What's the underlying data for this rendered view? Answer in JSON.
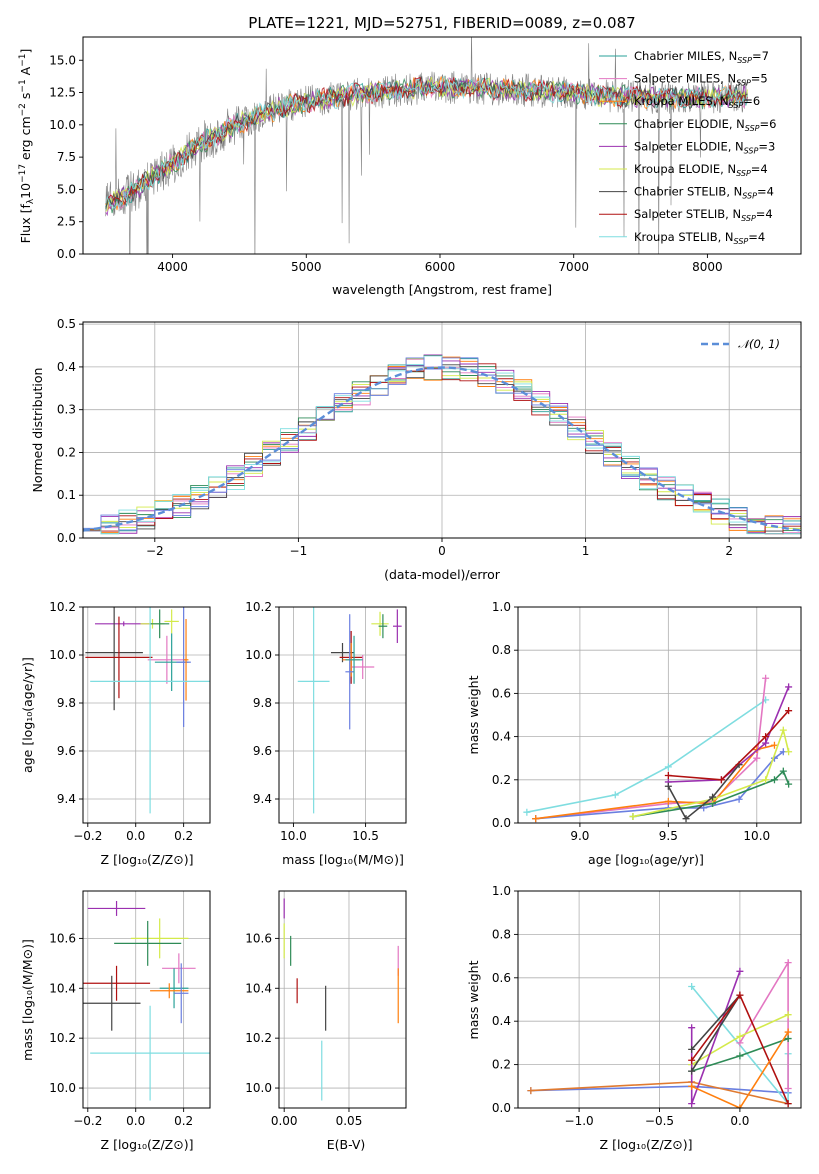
{
  "colors": {
    "Chabrier MILES": "#2aa198",
    "Salpeter MILES": "#e377c2",
    "Kroupa MILES": "#ff7f0e",
    "Chabrier ELODIE": "#2e8b57",
    "Salpeter ELODIE": "#9b30b0",
    "Kroupa ELODIE": "#d4ea4b",
    "Chabrier STELIB": "#444444",
    "Salpeter STELIB": "#b01010",
    "Kroupa STELIB": "#7fdde0",
    "data": "#808080",
    "gauss": "#5b8ed8",
    "extra1": "#6a7fe0",
    "extra2": "#e07a30"
  },
  "chart_data": [
    {
      "id": "spectrum",
      "type": "line",
      "title": "PLATE=1221, MJD=52751, FIBERID=0089, z=0.087",
      "xlabel": "wavelength [Angstrom, rest frame]",
      "ylabel": "Flux [fλ10⁻¹⁷ erg cm⁻² s⁻¹ A⁻¹]",
      "xlim": [
        3330,
        8700
      ],
      "ylim": [
        0,
        16.8
      ],
      "xticks": [
        "4000",
        "5000",
        "6000",
        "7000",
        "8000"
      ],
      "yticks": [
        "0.0",
        "2.5",
        "5.0",
        "7.5",
        "10.0",
        "12.5",
        "15.0"
      ],
      "grid": false,
      "legend_position": "right",
      "continuum": {
        "x": [
          3500,
          3700,
          3850,
          4000,
          4200,
          4400,
          4600,
          4800,
          5000,
          5200,
          5400,
          5600,
          5800,
          6000,
          6200,
          6400,
          6600,
          6800,
          7000,
          7200,
          7400,
          7600,
          7800,
          8000,
          8200,
          8300
        ],
        "y": [
          3.8,
          4.8,
          6.0,
          7.0,
          8.5,
          9.6,
          10.6,
          11.3,
          11.8,
          12.1,
          12.4,
          12.6,
          12.8,
          12.9,
          12.9,
          12.8,
          12.7,
          12.6,
          12.5,
          12.3,
          12.2,
          12.1,
          12.1,
          12.1,
          12.2,
          12.2
        ]
      },
      "legend": [
        {
          "name": "Chabrier MILES",
          "nssp": "7"
        },
        {
          "name": "Salpeter MILES",
          "nssp": "5"
        },
        {
          "name": "Kroupa MILES",
          "nssp": "6"
        },
        {
          "name": "Chabrier ELODIE",
          "nssp": "6"
        },
        {
          "name": "Salpeter ELODIE",
          "nssp": "3"
        },
        {
          "name": "Kroupa ELODIE",
          "nssp": "4"
        },
        {
          "name": "Chabrier STELIB",
          "nssp": "4"
        },
        {
          "name": "Salpeter STELIB",
          "nssp": "4"
        },
        {
          "name": "Kroupa STELIB",
          "nssp": "4"
        }
      ],
      "legend_prefix": "N",
      "legend_sub": "SSP"
    },
    {
      "id": "residuals",
      "type": "line",
      "xlabel": "(data-model)/error",
      "ylabel": "Normed distribution",
      "xlim": [
        -2.5,
        2.5
      ],
      "ylim": [
        0,
        0.505
      ],
      "xticks": [
        "−2",
        "−1",
        "0",
        "1",
        "2"
      ],
      "yticks": [
        "0.0",
        "0.1",
        "0.2",
        "0.3",
        "0.4",
        "0.5"
      ],
      "grid": true,
      "legend": [
        "𝒩(0, 1)"
      ],
      "legend_position": "top-right",
      "series": [
        {
          "name": "𝒩(0, 1)",
          "function": "normal",
          "mean": 0,
          "sigma": 1
        }
      ]
    },
    {
      "id": "age_vs_Z",
      "type": "scatter",
      "xlabel": "Z [log₁₀(Z/Z⊙)]",
      "ylabel": "age  [log₁₀(age/yr)]",
      "xlim": [
        -0.22,
        0.31
      ],
      "ylim": [
        9.3,
        10.2
      ],
      "xticks": [
        "−0.2",
        "0.0",
        "0.2"
      ],
      "yticks": [
        "9.4",
        "9.6",
        "9.8",
        "10.0",
        "10.2"
      ],
      "grid": true,
      "points": [
        {
          "x": -0.05,
          "y": 10.13,
          "ex": 0.12,
          "ey": 0.01,
          "c": "Salpeter ELODIE"
        },
        {
          "x": 0.07,
          "y": 10.13,
          "ex": 0.05,
          "ey": 0.02,
          "c": "Kroupa ELODIE"
        },
        {
          "x": 0.1,
          "y": 10.13,
          "ex": 0.04,
          "ey": 0.06,
          "c": "Chabrier ELODIE"
        },
        {
          "x": 0.15,
          "y": 10.14,
          "ex": 0.03,
          "ey": 0.05,
          "c": "Kroupa ELODIE"
        },
        {
          "x": -0.09,
          "y": 10.01,
          "ex": 0.12,
          "ey": 0.24,
          "c": "Chabrier STELIB"
        },
        {
          "x": -0.07,
          "y": 9.99,
          "ex": 0.14,
          "ey": 0.17,
          "c": "Salpeter STELIB"
        },
        {
          "x": 0.13,
          "y": 9.98,
          "ex": 0.08,
          "ey": 0.1,
          "c": "Salpeter MILES"
        },
        {
          "x": 0.15,
          "y": 9.97,
          "ex": 0.07,
          "ey": 0.12,
          "c": "Chabrier MILES"
        },
        {
          "x": 0.2,
          "y": 9.97,
          "ex": 0.03,
          "ey": 0.27,
          "c": "extra1"
        },
        {
          "x": 0.21,
          "y": 9.98,
          "ex": 0.01,
          "ey": 0.17,
          "c": "Kroupa MILES"
        },
        {
          "x": 0.06,
          "y": 9.89,
          "ex": 0.25,
          "ey": 0.55,
          "c": "Kroupa STELIB"
        }
      ]
    },
    {
      "id": "age_vs_mass",
      "type": "scatter",
      "xlabel": "mass [log₁₀(M/M⊙)]",
      "ylabel": "",
      "xlim": [
        9.9,
        10.78
      ],
      "ylim": [
        9.3,
        10.2
      ],
      "xticks": [
        "10.0",
        "10.5"
      ],
      "yticks": [
        "9.4",
        "9.6",
        "9.8",
        "10.0",
        "10.2"
      ],
      "grid": true,
      "points": [
        {
          "x": 10.72,
          "y": 10.12,
          "ex": 0.03,
          "ey": 0.07,
          "c": "Salpeter ELODIE"
        },
        {
          "x": 10.6,
          "y": 10.13,
          "ex": 0.06,
          "ey": 0.05,
          "c": "Kroupa ELODIE"
        },
        {
          "x": 10.62,
          "y": 10.12,
          "ex": 0.03,
          "ey": 0.05,
          "c": "Chabrier ELODIE"
        },
        {
          "x": 10.34,
          "y": 10.01,
          "ex": 0.08,
          "ey": 0.04,
          "c": "Chabrier STELIB"
        },
        {
          "x": 10.4,
          "y": 9.99,
          "ex": 0.08,
          "ey": 0.11,
          "c": "Salpeter STELIB"
        },
        {
          "x": 10.48,
          "y": 9.95,
          "ex": 0.08,
          "ey": 0.05,
          "c": "Salpeter MILES"
        },
        {
          "x": 10.4,
          "y": 9.98,
          "ex": 0.06,
          "ey": 0.07,
          "c": "Kroupa MILES"
        },
        {
          "x": 10.39,
          "y": 9.93,
          "ex": 0.03,
          "ey": 0.24,
          "c": "extra1"
        },
        {
          "x": 10.42,
          "y": 9.98,
          "ex": 0.06,
          "ey": 0.1,
          "c": "Chabrier MILES"
        },
        {
          "x": 10.14,
          "y": 9.89,
          "ex": 0.11,
          "ey": 0.55,
          "c": "Kroupa STELIB"
        }
      ]
    },
    {
      "id": "weight_vs_age",
      "type": "line",
      "xlabel": "age  [log₁₀(age/yr)]",
      "ylabel": "mass weight",
      "xlim": [
        8.65,
        10.25
      ],
      "ylim": [
        0,
        1
      ],
      "xticks": [
        "9.0",
        "9.5",
        "10.0"
      ],
      "yticks": [
        "0.0",
        "0.2",
        "0.4",
        "0.6",
        "0.8",
        "1.0"
      ],
      "grid": true,
      "series": [
        {
          "c": "Kroupa STELIB",
          "x": [
            8.7,
            9.2,
            9.5,
            10.05
          ],
          "y": [
            0.05,
            0.13,
            0.26,
            0.57
          ]
        },
        {
          "c": "Salpeter MILES",
          "x": [
            8.75,
            9.5,
            9.75,
            10.0,
            10.05
          ],
          "y": [
            0.02,
            0.09,
            0.1,
            0.3,
            0.67
          ]
        },
        {
          "c": "extra1",
          "x": [
            8.75,
            9.5,
            9.7,
            9.9,
            10.1,
            10.15
          ],
          "y": [
            0.02,
            0.07,
            0.07,
            0.11,
            0.3,
            0.33
          ]
        },
        {
          "c": "Kroupa MILES",
          "x": [
            8.75,
            9.5,
            9.75,
            10.0,
            10.1
          ],
          "y": [
            0.02,
            0.1,
            0.09,
            0.34,
            0.36
          ]
        },
        {
          "c": "Chabrier ELODIE",
          "x": [
            9.3,
            9.75,
            10.1,
            10.15,
            10.18
          ],
          "y": [
            0.03,
            0.09,
            0.2,
            0.24,
            0.18
          ]
        },
        {
          "c": "Kroupa ELODIE",
          "x": [
            9.3,
            9.75,
            10.05,
            10.15,
            10.18
          ],
          "y": [
            0.03,
            0.11,
            0.2,
            0.43,
            0.33
          ]
        },
        {
          "c": "Salpeter ELODIE",
          "x": [
            9.5,
            9.8,
            10.05,
            10.18
          ],
          "y": [
            0.19,
            0.2,
            0.37,
            0.63
          ]
        },
        {
          "c": "Chabrier STELIB",
          "x": [
            9.5,
            9.6,
            9.75,
            9.9
          ],
          "y": [
            0.17,
            0.02,
            0.12,
            0.27
          ]
        },
        {
          "c": "Salpeter STELIB",
          "x": [
            9.5,
            9.8,
            10.05,
            10.18
          ],
          "y": [
            0.22,
            0.2,
            0.4,
            0.52
          ]
        }
      ]
    },
    {
      "id": "mass_vs_Z",
      "type": "scatter",
      "xlabel": "Z [log₁₀(Z/Z⊙)]",
      "ylabel": "mass [log₁₀(M/M⊙)]",
      "xlim": [
        -0.22,
        0.31
      ],
      "ylim": [
        9.92,
        10.79
      ],
      "xticks": [
        "−0.2",
        "0.0",
        "0.2"
      ],
      "yticks": [
        "10.0",
        "10.2",
        "10.4",
        "10.6"
      ],
      "grid": true,
      "points": [
        {
          "x": -0.08,
          "y": 10.72,
          "ex": 0.12,
          "ey": 0.03,
          "c": "Salpeter ELODIE"
        },
        {
          "x": 0.1,
          "y": 10.6,
          "ex": 0.12,
          "ey": 0.08,
          "c": "Kroupa ELODIE"
        },
        {
          "x": 0.05,
          "y": 10.58,
          "ex": 0.14,
          "ey": 0.09,
          "c": "Chabrier ELODIE"
        },
        {
          "x": 0.18,
          "y": 10.48,
          "ex": 0.07,
          "ey": 0.06,
          "c": "Salpeter MILES"
        },
        {
          "x": -0.08,
          "y": 10.42,
          "ex": 0.14,
          "ey": 0.07,
          "c": "Salpeter STELIB"
        },
        {
          "x": 0.16,
          "y": 10.4,
          "ex": 0.06,
          "ey": 0.08,
          "c": "Chabrier MILES"
        },
        {
          "x": 0.14,
          "y": 10.39,
          "ex": 0.08,
          "ey": 0.03,
          "c": "Kroupa MILES"
        },
        {
          "x": 0.19,
          "y": 10.38,
          "ex": 0.03,
          "ey": 0.12,
          "c": "extra1"
        },
        {
          "x": -0.1,
          "y": 10.34,
          "ex": 0.12,
          "ey": 0.11,
          "c": "Chabrier STELIB"
        },
        {
          "x": 0.06,
          "y": 10.14,
          "ex": 0.25,
          "ey": 0.19,
          "c": "Kroupa STELIB"
        }
      ]
    },
    {
      "id": "mass_vs_ebv",
      "type": "scatter",
      "xlabel": "E(B-V)",
      "ylabel": "",
      "xlim": [
        -0.004,
        0.094
      ],
      "ylim": [
        9.92,
        10.79
      ],
      "xticks": [
        "0.00",
        "0.05"
      ],
      "yticks": [
        "10.0",
        "10.2",
        "10.4",
        "10.6"
      ],
      "grid": true,
      "points": [
        {
          "x": 0.0,
          "y": 10.72,
          "ex": 0,
          "ey": 0.04,
          "c": "Salpeter ELODIE"
        },
        {
          "x": 0.0,
          "y": 10.59,
          "ex": 0,
          "ey": 0.07,
          "c": "Kroupa ELODIE"
        },
        {
          "x": 0.005,
          "y": 10.55,
          "ex": 0,
          "ey": 0.06,
          "c": "Chabrier ELODIE"
        },
        {
          "x": 0.01,
          "y": 10.39,
          "ex": 0,
          "ey": 0.05,
          "c": "Salpeter STELIB"
        },
        {
          "x": 0.032,
          "y": 10.32,
          "ex": 0,
          "ey": 0.09,
          "c": "Chabrier STELIB"
        },
        {
          "x": 0.029,
          "y": 10.07,
          "ex": 0,
          "ey": 0.12,
          "c": "Kroupa STELIB"
        },
        {
          "x": 0.088,
          "y": 10.51,
          "ex": 0,
          "ey": 0.06,
          "c": "Salpeter MILES"
        },
        {
          "x": 0.088,
          "y": 10.37,
          "ex": 0,
          "ey": 0.11,
          "c": "Kroupa MILES"
        }
      ]
    },
    {
      "id": "weight_vs_Z",
      "type": "line",
      "xlabel": "Z [log₁₀(Z/Z⊙)]",
      "ylabel": "mass weight",
      "xlim": [
        -1.38,
        0.38
      ],
      "ylim": [
        0,
        1
      ],
      "xticks": [
        "−1.0",
        "−0.5",
        "0.0"
      ],
      "yticks": [
        "0.0",
        "0.2",
        "0.4",
        "0.6",
        "0.8",
        "1.0"
      ],
      "grid": true,
      "series": [
        {
          "c": "extra1",
          "x": [
            -1.3,
            -0.3,
            0.3
          ],
          "y": [
            0.08,
            0.1,
            0.07
          ]
        },
        {
          "c": "extra2",
          "x": [
            -1.3,
            -0.3,
            0.3
          ],
          "y": [
            0.08,
            0.12,
            0.02
          ]
        },
        {
          "c": "Kroupa STELIB",
          "x": [
            -0.3,
            0.3,
            0.3
          ],
          "y": [
            0.56,
            0.02,
            0.25
          ]
        },
        {
          "c": "Salpeter MILES",
          "x": [
            0.0,
            0.3,
            0.3
          ],
          "y": [
            0.3,
            0.67,
            0.09
          ]
        },
        {
          "c": "Kroupa ELODIE",
          "x": [
            -0.3,
            0.0,
            0.3
          ],
          "y": [
            0.2,
            0.33,
            0.43
          ]
        },
        {
          "c": "Chabrier ELODIE",
          "x": [
            -0.3,
            0.0,
            0.3
          ],
          "y": [
            0.17,
            0.24,
            0.32
          ]
        },
        {
          "c": "Salpeter ELODIE",
          "x": [
            -0.3,
            -0.3,
            0.0
          ],
          "y": [
            0.37,
            0.02,
            0.63
          ]
        },
        {
          "c": "Chabrier STELIB",
          "x": [
            -0.3,
            0.0,
            -0.3
          ],
          "y": [
            0.27,
            0.52,
            0.17
          ]
        },
        {
          "c": "Salpeter STELIB",
          "x": [
            -0.3,
            0.0,
            0.3
          ],
          "y": [
            0.22,
            0.52,
            0.02
          ]
        },
        {
          "c": "Kroupa MILES",
          "x": [
            -0.3,
            0.0,
            0.3
          ],
          "y": [
            0.1,
            0.0,
            0.35
          ]
        }
      ]
    }
  ]
}
